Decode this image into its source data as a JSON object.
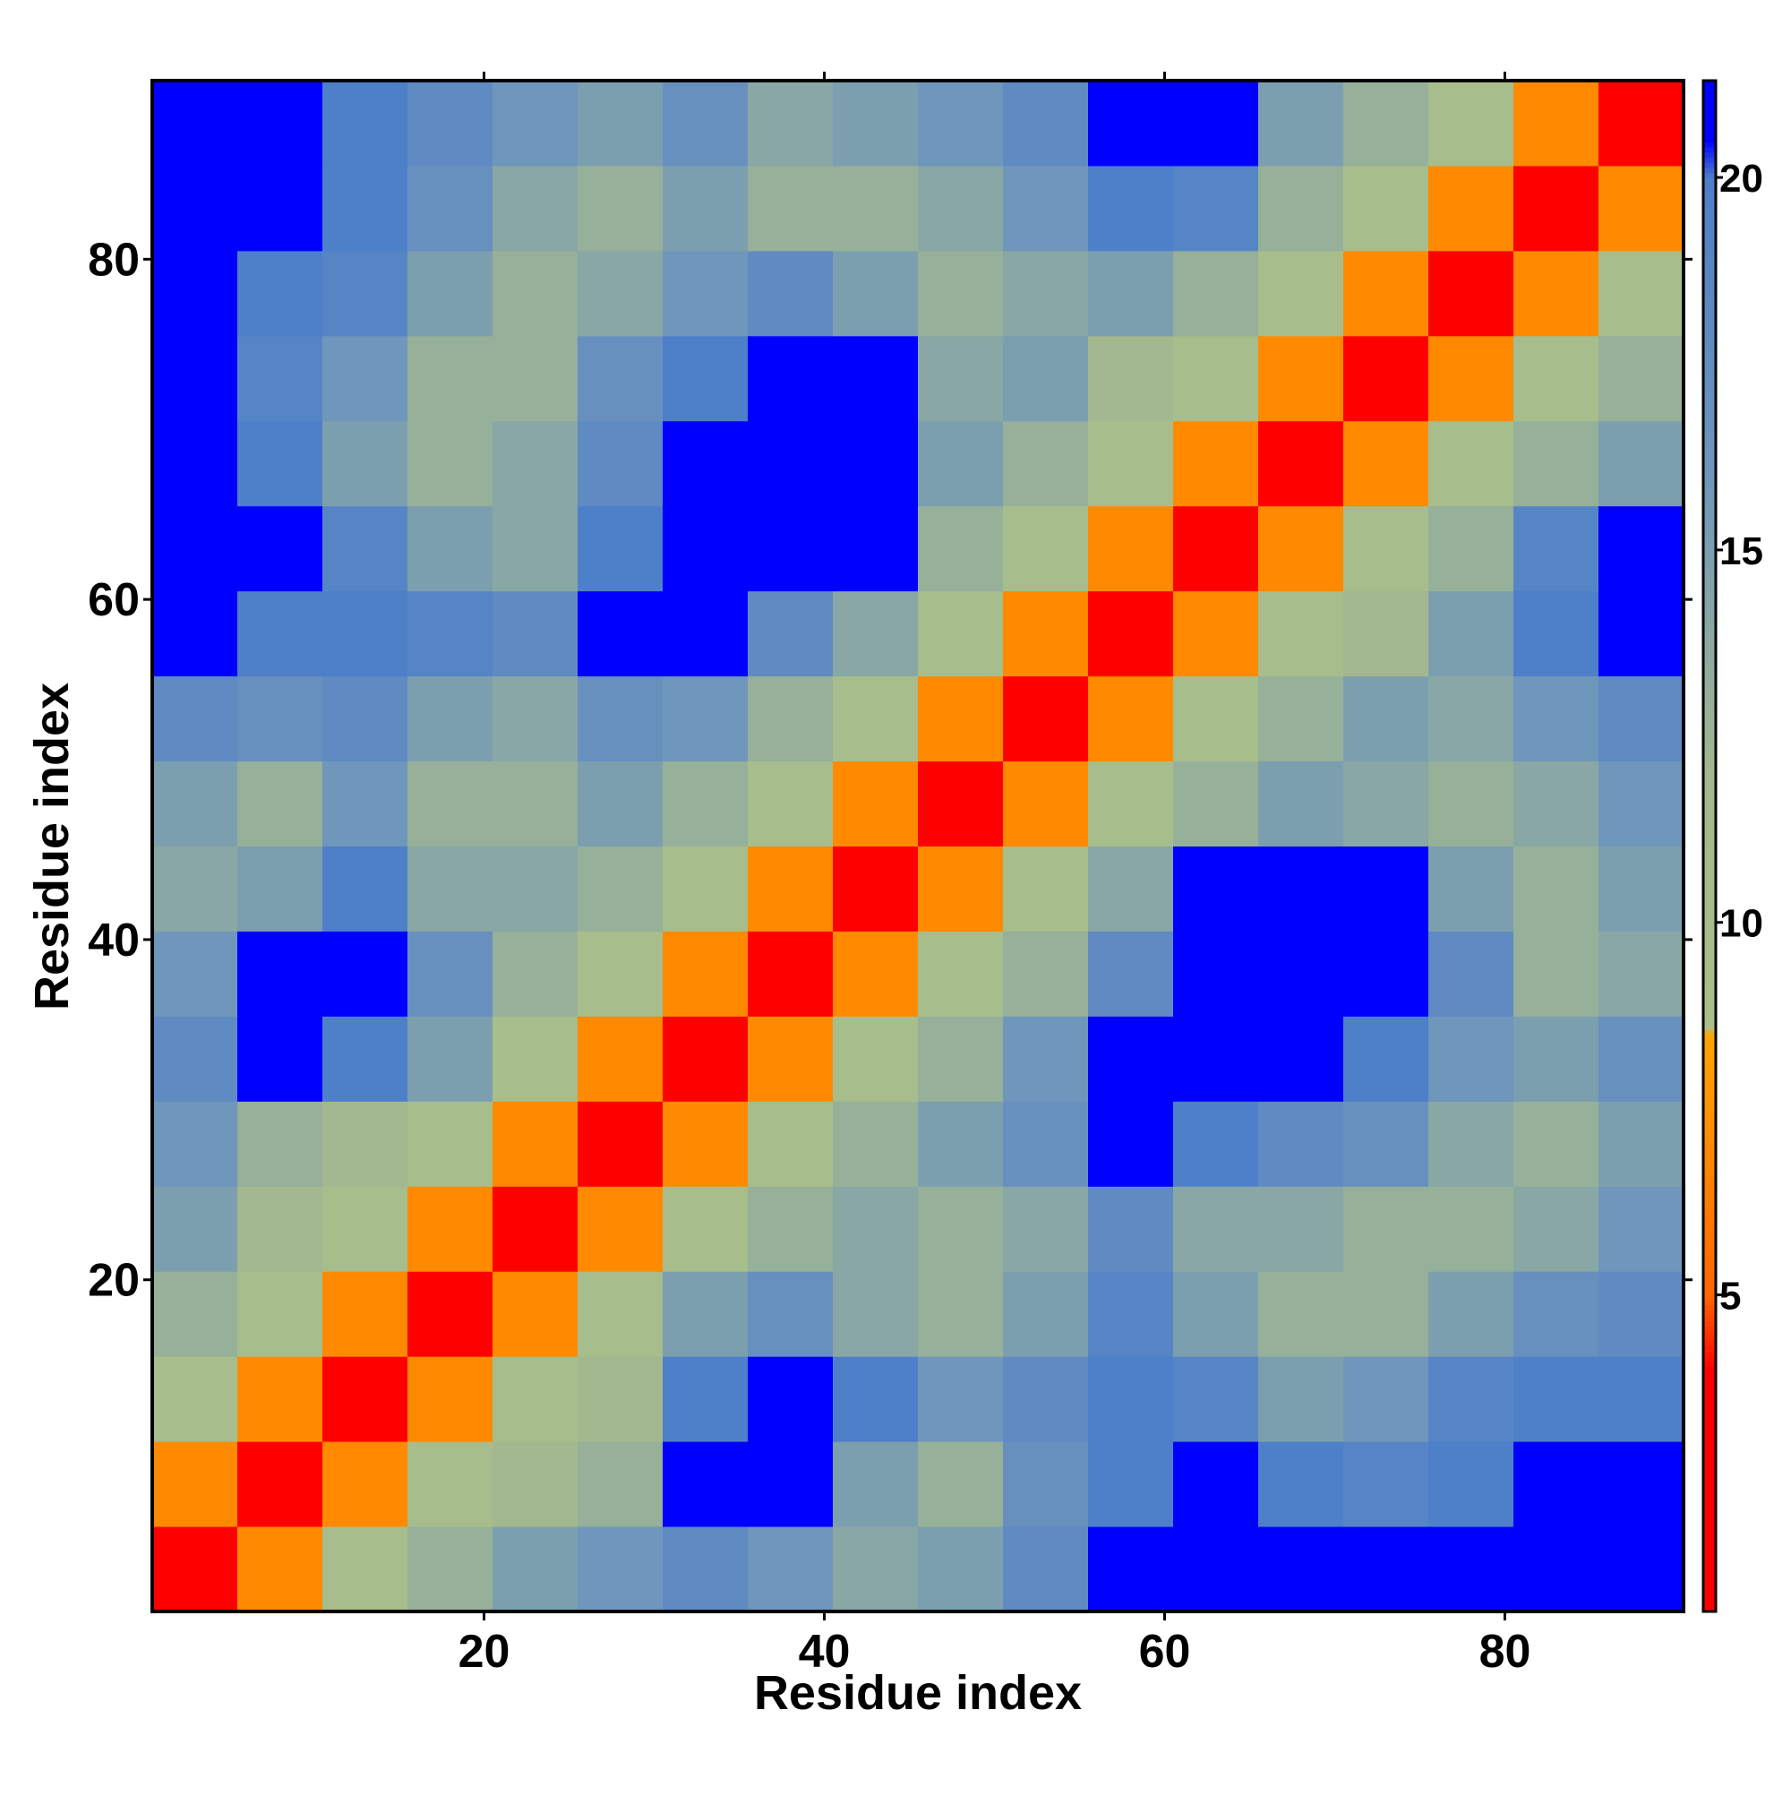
{
  "chart_data": {
    "type": "heatmap",
    "xlabel": "Residue index",
    "ylabel": "Residue index",
    "x": [
      3,
      8,
      13,
      18,
      23,
      28,
      33,
      38,
      43,
      48,
      53,
      58,
      63,
      68,
      73,
      78,
      83,
      88
    ],
    "y": [
      3,
      8,
      13,
      18,
      23,
      28,
      33,
      38,
      43,
      48,
      53,
      58,
      63,
      68,
      73,
      78,
      83,
      88
    ],
    "z": [
      [
        3,
        7,
        10,
        13,
        15,
        16,
        18,
        16,
        14,
        15,
        18,
        21,
        22,
        21,
        21,
        21,
        22,
        22
      ],
      [
        7,
        3,
        7,
        10,
        12,
        13,
        21,
        22,
        15,
        13,
        17,
        20,
        21,
        20,
        19,
        20,
        21,
        21
      ],
      [
        10,
        7,
        3,
        7,
        10,
        12,
        20,
        22,
        20,
        16,
        18,
        20,
        19,
        15,
        16,
        19,
        20,
        20
      ],
      [
        13,
        10,
        7,
        3,
        7,
        10,
        15,
        17,
        14,
        13,
        15,
        19,
        15,
        13,
        13,
        15,
        17,
        18
      ],
      [
        15,
        12,
        10,
        7,
        3,
        7,
        10,
        13,
        14,
        13,
        14,
        18,
        14,
        14,
        13,
        13,
        14,
        16
      ],
      [
        16,
        13,
        12,
        10,
        7,
        3,
        7,
        10,
        13,
        15,
        17,
        21,
        20,
        18,
        17,
        14,
        13,
        15
      ],
      [
        18,
        21,
        20,
        15,
        10,
        7,
        3,
        7,
        10,
        13,
        16,
        21,
        22,
        22,
        20,
        16,
        15,
        17
      ],
      [
        16,
        22,
        22,
        17,
        13,
        10,
        7,
        3,
        7,
        10,
        13,
        18,
        22,
        22,
        22,
        18,
        13,
        14
      ],
      [
        14,
        15,
        20,
        14,
        14,
        13,
        10,
        7,
        3,
        7,
        10,
        14,
        21,
        22,
        21,
        15,
        13,
        15
      ],
      [
        15,
        13,
        16,
        13,
        13,
        15,
        13,
        10,
        7,
        3,
        7,
        10,
        13,
        15,
        14,
        13,
        14,
        16
      ],
      [
        18,
        17,
        18,
        15,
        14,
        17,
        16,
        13,
        10,
        7,
        3,
        7,
        10,
        13,
        15,
        14,
        16,
        18
      ],
      [
        21,
        20,
        20,
        19,
        18,
        21,
        21,
        18,
        14,
        10,
        7,
        3,
        7,
        10,
        12,
        15,
        20,
        21
      ],
      [
        22,
        21,
        19,
        15,
        14,
        20,
        22,
        22,
        21,
        13,
        10,
        7,
        3,
        7,
        10,
        13,
        19,
        21
      ],
      [
        21,
        20,
        15,
        13,
        14,
        18,
        22,
        22,
        22,
        15,
        13,
        10,
        7,
        3,
        7,
        10,
        13,
        15
      ],
      [
        21,
        19,
        16,
        13,
        13,
        17,
        20,
        22,
        21,
        14,
        15,
        12,
        10,
        7,
        3,
        7,
        10,
        13
      ],
      [
        21,
        20,
        19,
        15,
        13,
        14,
        16,
        18,
        15,
        13,
        14,
        15,
        13,
        10,
        7,
        3,
        7,
        10
      ],
      [
        22,
        21,
        20,
        17,
        14,
        13,
        15,
        13,
        13,
        14,
        16,
        20,
        19,
        13,
        10,
        7,
        3,
        7
      ],
      [
        22,
        21,
        20,
        18,
        16,
        15,
        17,
        14,
        15,
        16,
        18,
        21,
        21,
        15,
        13,
        10,
        7,
        3
      ]
    ],
    "xlim": [
      0.5,
      90.5
    ],
    "ylim": [
      0.5,
      90.5
    ],
    "xticks": [
      20,
      40,
      60,
      80
    ],
    "yticks": [
      20,
      40,
      60,
      80
    ],
    "zlim": [
      0.75,
      21.3
    ],
    "zticks": [
      5,
      10,
      15,
      20
    ],
    "colorscale": [
      [
        0.75,
        "#ff0000"
      ],
      [
        4,
        "#ff0000"
      ],
      [
        5,
        "#ff6600"
      ],
      [
        8.5,
        "#ffa500"
      ],
      [
        8.6,
        "#a9c08a"
      ],
      [
        12,
        "#a3b88e"
      ],
      [
        16,
        "#6f96bb"
      ],
      [
        20,
        "#4e7fc9"
      ],
      [
        20.5,
        "#0000ff"
      ],
      [
        21.3,
        "#0000ff"
      ]
    ]
  }
}
